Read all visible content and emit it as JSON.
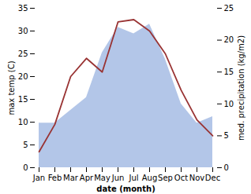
{
  "chart_data": {
    "type": "line",
    "xlabel": "date (month)",
    "ylabel": "max temp (C)",
    "y2label": "med. precipitation (kg/m2)",
    "categories": [
      "Jan",
      "Feb",
      "Mar",
      "Apr",
      "May",
      "Jun",
      "Jul",
      "Aug",
      "Sep",
      "Oct",
      "Nov",
      "Dec"
    ],
    "series": [
      {
        "type": "area",
        "axis": "y2",
        "color": "#b3c6e8",
        "values": [
          7.0,
          7.0,
          9.0,
          11.0,
          18.0,
          22.0,
          21.0,
          22.5,
          17.0,
          10.0,
          7.0,
          8.0
        ]
      },
      {
        "type": "line",
        "color": "#993333",
        "values": [
          3.5,
          9.5,
          20.0,
          24.0,
          21.0,
          32.0,
          32.5,
          30.0,
          25.0,
          17.0,
          10.5,
          7.0
        ]
      }
    ],
    "ylim": [
      0,
      35
    ],
    "yticks": [
      0,
      5,
      10,
      15,
      20,
      25,
      30,
      35
    ],
    "y2lim": [
      0,
      25
    ],
    "y2ticks": [
      0,
      5,
      10,
      15,
      20,
      25
    ],
    "grid": false
  }
}
